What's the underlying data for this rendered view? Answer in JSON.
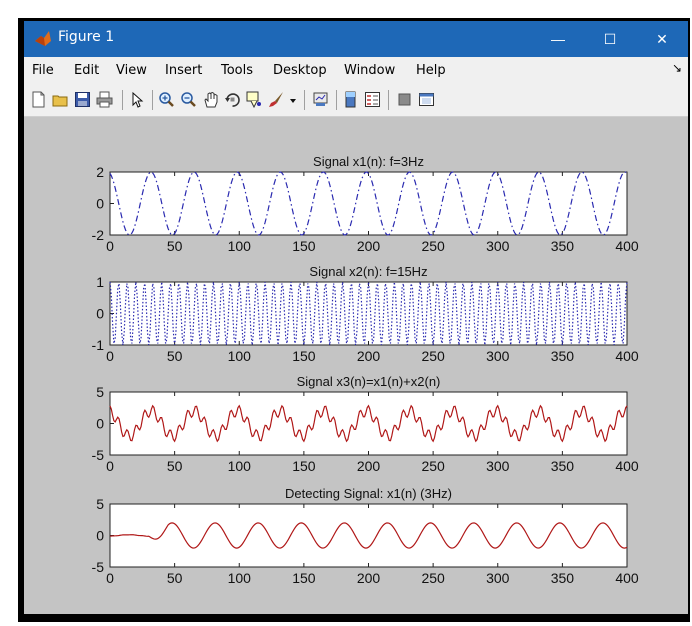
{
  "window": {
    "title": "Figure 1",
    "minimize_glyph": "—",
    "maximize_glyph": "☐",
    "close_glyph": "✕"
  },
  "menu": [
    "File",
    "Edit",
    "View",
    "Insert",
    "Tools",
    "Desktop",
    "Window",
    "Help"
  ],
  "menu_overflow": "↘",
  "toolbar_icons": [
    "new-figure-icon",
    "open-file-icon",
    "save-icon",
    "print-icon",
    "pointer-icon",
    "zoom-in-icon",
    "zoom-out-icon",
    "pan-icon",
    "rotate-3d-icon",
    "data-cursor-icon",
    "brush-icon",
    "dropdown-arrow-icon",
    "link-plot-icon",
    "colorbar-icon",
    "legend-icon",
    "hide-plot-tools-icon",
    "show-plot-tools-icon"
  ],
  "colors": {
    "blue": "#2a2ab0",
    "red": "#b01818",
    "accent": "#1e68b7"
  },
  "chart_data": [
    {
      "type": "line",
      "title": "Signal x1(n): f=3Hz",
      "x": [
        0,
        400
      ],
      "ylim": [
        -2,
        2
      ],
      "yticks": [
        "2",
        "0",
        "-2"
      ],
      "xticks": [
        "0",
        "50",
        "100",
        "150",
        "200",
        "250",
        "300",
        "350",
        "400"
      ],
      "series": [
        {
          "values": "2*cos(2*pi*3*n/100)",
          "style": "dash-dot",
          "color": "blue"
        }
      ]
    },
    {
      "type": "line",
      "title": "Signal x2(n): f=15Hz",
      "x": [
        0,
        400
      ],
      "ylim": [
        -1,
        1
      ],
      "yticks": [
        "1",
        "0",
        "-1"
      ],
      "xticks": [
        "0",
        "50",
        "100",
        "150",
        "200",
        "250",
        "300",
        "350",
        "400"
      ],
      "series": [
        {
          "values": "cos(2*pi*15*n/100)",
          "style": "dotted",
          "color": "blue"
        }
      ]
    },
    {
      "type": "line",
      "title": "Signal x3(n)=x1(n)+x2(n)",
      "x": [
        0,
        400
      ],
      "ylim": [
        -5,
        5
      ],
      "yticks": [
        "5",
        "0",
        "-5"
      ],
      "xticks": [
        "0",
        "50",
        "100",
        "150",
        "200",
        "250",
        "300",
        "350",
        "400"
      ],
      "series": [
        {
          "values": "x1+x2",
          "style": "solid",
          "color": "red"
        }
      ]
    },
    {
      "type": "line",
      "title": "Detecting Signal: x1(n) (3Hz)",
      "x": [
        0,
        400
      ],
      "ylim": [
        -5,
        5
      ],
      "yticks": [
        "5",
        "0",
        "-5"
      ],
      "xticks": [
        "0",
        "50",
        "100",
        "150",
        "200",
        "250",
        "300",
        "350",
        "400"
      ],
      "series": [
        {
          "values": "filtered x1, amplitude 2, starts near n=40",
          "style": "solid",
          "color": "red"
        }
      ]
    }
  ]
}
